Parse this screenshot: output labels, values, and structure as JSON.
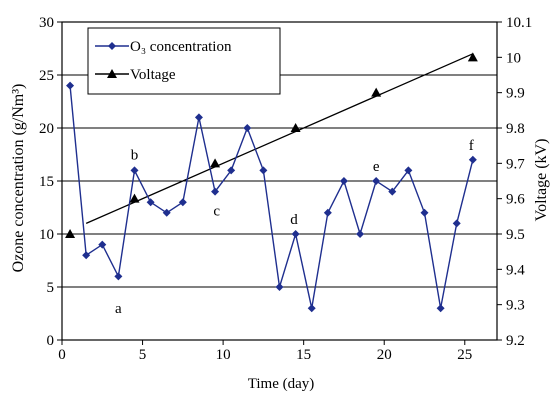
{
  "chart_data": {
    "type": "line",
    "title": "",
    "xlabel": "Time (day)",
    "ylabel_left": "Ozone concentration (g/Nm³)",
    "ylabel_right": "Voltage (kV)",
    "xlim": [
      0,
      27
    ],
    "xticks": [
      0,
      5,
      10,
      15,
      20,
      25
    ],
    "ylim_left": [
      0,
      30
    ],
    "yticks_left": [
      0,
      5,
      10,
      15,
      20,
      25,
      30
    ],
    "ylim_right": [
      9.2,
      10.1
    ],
    "yticks_right": [
      "9.2",
      "9.3",
      "9.4",
      "9.5",
      "9.6",
      "9.7",
      "9.8",
      "9.9",
      "10",
      "10.1"
    ],
    "grid": "horizontal",
    "legend": {
      "placement": "top-left",
      "entries": [
        {
          "label": "O₃ concentration",
          "marker": "diamond"
        },
        {
          "label": "Voltage",
          "marker": "triangle"
        }
      ]
    },
    "series": [
      {
        "name": "O₃ concentration",
        "axis": "left",
        "marker": "diamond",
        "color": "#1f2f8f",
        "x": [
          0.5,
          1.5,
          2.5,
          3.5,
          4.5,
          5.5,
          6.5,
          7.5,
          8.5,
          9.5,
          10.5,
          11.5,
          12.5,
          13.5,
          14.5,
          15.5,
          16.5,
          17.5,
          18.5,
          19.5,
          20.5,
          21.5,
          22.5,
          23.5,
          24.5,
          25.5
        ],
        "y": [
          24,
          8,
          9,
          6,
          16,
          13,
          12,
          13,
          21,
          14,
          16,
          20,
          16,
          5,
          10,
          3,
          12,
          15,
          10,
          15,
          14,
          16,
          12,
          3,
          11,
          17
        ]
      },
      {
        "name": "Voltage",
        "axis": "right",
        "marker": "triangle",
        "color": "#000000",
        "x": [
          0.5,
          4.5,
          9.5,
          14.5,
          19.5,
          25.5
        ],
        "y": [
          9.5,
          9.6,
          9.7,
          9.8,
          9.9,
          10.0
        ]
      }
    ],
    "trendline": {
      "axis": "right",
      "x": [
        1.5,
        25.5
      ],
      "y": [
        9.53,
        10.01
      ],
      "color": "#000000"
    },
    "annotations": [
      {
        "text": "a",
        "x": 3.5,
        "y_left": 3.0
      },
      {
        "text": "b",
        "x": 4.5,
        "y_left": 17.5
      },
      {
        "text": "c",
        "x": 9.6,
        "y_left": 12.2
      },
      {
        "text": "d",
        "x": 14.4,
        "y_left": 11.4
      },
      {
        "text": "e",
        "x": 19.5,
        "y_left": 16.4
      },
      {
        "text": "f",
        "x": 25.4,
        "y_left": 18.4
      }
    ]
  }
}
